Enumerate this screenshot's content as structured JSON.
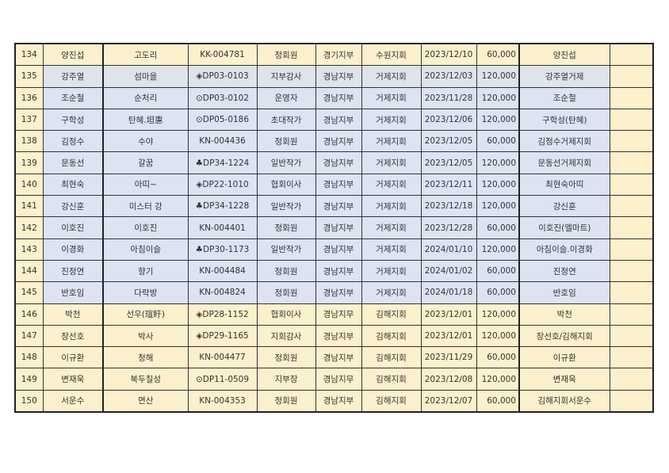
{
  "colors": {
    "yellow": "#fdf0cc",
    "blue": "#dce3f3",
    "gray": "#dfe3ea"
  },
  "rows": [
    {
      "no": "134",
      "name": "양진섭",
      "pen_name": "고도리",
      "member_id": "KK-004781",
      "role": "정회원",
      "branch": "경기지부",
      "sub_branch": "수원지회",
      "date": "2023/12/10",
      "amount": "60,000",
      "depositor": "양진섭",
      "note": "",
      "shade": "y"
    },
    {
      "no": "135",
      "name": "강주열",
      "pen_name": "섬마을",
      "member_id": "◈DP03-0103",
      "role": "지부감사",
      "branch": "경남지부",
      "sub_branch": "거제지회",
      "date": "2023/12/03",
      "amount": "120,000",
      "depositor": "강주열거제",
      "note": "",
      "shade": "g"
    },
    {
      "no": "136",
      "name": "조순철",
      "pen_name": "순처리",
      "member_id": "⊙DP03-0102",
      "role": "운영자",
      "branch": "경남지부",
      "sub_branch": "거제지회",
      "date": "2023/11/28",
      "amount": "120,000",
      "depositor": "조순철",
      "note": "",
      "shade": "b"
    },
    {
      "no": "137",
      "name": "구학성",
      "pen_name": "탄혜.坦惠",
      "member_id": "⊙DP05-0186",
      "role": "초대작가",
      "branch": "경남지부",
      "sub_branch": "거제지회",
      "date": "2023/12/06",
      "amount": "120,000",
      "depositor": "구학성(탄혜)",
      "note": "",
      "shade": "b"
    },
    {
      "no": "138",
      "name": "김정수",
      "pen_name": "수야",
      "member_id": "KN-004436",
      "role": "정회원",
      "branch": "경남지부",
      "sub_branch": "거제지회",
      "date": "2023/12/05",
      "amount": "60,000",
      "depositor": "김정수거제지회",
      "note": "",
      "shade": "b"
    },
    {
      "no": "139",
      "name": "문동선",
      "pen_name": "갈꿈",
      "member_id": "♣DP34-1224",
      "role": "일반작가",
      "branch": "경남지부",
      "sub_branch": "거제지회",
      "date": "2023/12/05",
      "amount": "120,000",
      "depositor": "문동선거제지회",
      "note": "",
      "shade": "b"
    },
    {
      "no": "140",
      "name": "최현숙",
      "pen_name": "아띠~",
      "member_id": "◈DP22-1010",
      "role": "협회이사",
      "branch": "경남지부",
      "sub_branch": "거제지회",
      "date": "2023/12/11",
      "amount": "120,000",
      "depositor": "최현숙아띠",
      "note": "",
      "shade": "b"
    },
    {
      "no": "141",
      "name": "강신훈",
      "pen_name": "미스터 강",
      "member_id": "♣DP34-1228",
      "role": "일반작가",
      "branch": "경남지부",
      "sub_branch": "거제지회",
      "date": "2023/12/18",
      "amount": "120,000",
      "depositor": "강신훈",
      "note": "",
      "shade": "b"
    },
    {
      "no": "142",
      "name": "이호진",
      "pen_name": "이호진",
      "member_id": "KN-004401",
      "role": "정회원",
      "branch": "경남지부",
      "sub_branch": "거제지회",
      "date": "2023/12/28",
      "amount": "60,000",
      "depositor": "이호진(엘마트)",
      "note": "",
      "shade": "b"
    },
    {
      "no": "143",
      "name": "이경화",
      "pen_name": "아침이슬",
      "member_id": "♣DP30-1173",
      "role": "일반작가",
      "branch": "경남지부",
      "sub_branch": "거제지회",
      "date": "2024/01/10",
      "amount": "120,000",
      "depositor": "아침이슬.이경화",
      "note": "",
      "shade": "b"
    },
    {
      "no": "144",
      "name": "진정연",
      "pen_name": "향기",
      "member_id": "KN-004484",
      "role": "정회원",
      "branch": "경남지부",
      "sub_branch": "거제지회",
      "date": "2024/01/02",
      "amount": "60,000",
      "depositor": "진정연",
      "note": "",
      "shade": "b"
    },
    {
      "no": "145",
      "name": "반호임",
      "pen_name": "다락방",
      "member_id": "KN-004824",
      "role": "정회원",
      "branch": "경남지부",
      "sub_branch": "거제지회",
      "date": "2024/01/18",
      "amount": "60,000",
      "depositor": "반호임",
      "note": "",
      "shade": "b"
    },
    {
      "no": "146",
      "name": "박천",
      "pen_name": "선우(瑄盱)",
      "member_id": "◈DP28-1152",
      "role": "협회이사",
      "branch": "경남지무",
      "sub_branch": "김해지회",
      "date": "2023/12/01",
      "amount": "120,000",
      "depositor": "박천",
      "note": "",
      "shade": "y"
    },
    {
      "no": "147",
      "name": "장선호",
      "pen_name": "박사",
      "member_id": "◈DP29-1165",
      "role": "지회감사",
      "branch": "경남지부",
      "sub_branch": "김해지회",
      "date": "2023/12/01",
      "amount": "120,000",
      "depositor": "장선호/김해지회",
      "note": "",
      "shade": "y"
    },
    {
      "no": "148",
      "name": "이규환",
      "pen_name": "청해",
      "member_id": "KN-004477",
      "role": "정회원",
      "branch": "경남지부",
      "sub_branch": "김해지회",
      "date": "2023/11/29",
      "amount": "60,000",
      "depositor": "이규환",
      "note": "",
      "shade": "y"
    },
    {
      "no": "149",
      "name": "변재욱",
      "pen_name": "북두칠성",
      "member_id": "⊙DP11-0509",
      "role": "지부장",
      "branch": "경남지무",
      "sub_branch": "김해지회",
      "date": "2023/12/08",
      "amount": "120,000",
      "depositor": "변재욱",
      "note": "",
      "shade": "y"
    },
    {
      "no": "150",
      "name": "서운수",
      "pen_name": "면산",
      "member_id": "KN-004353",
      "role": "정회원",
      "branch": "경남지부",
      "sub_branch": "김해지회",
      "date": "2023/12/07",
      "amount": "60,000",
      "depositor": "김해지회서운수",
      "note": "",
      "shade": "y"
    }
  ]
}
